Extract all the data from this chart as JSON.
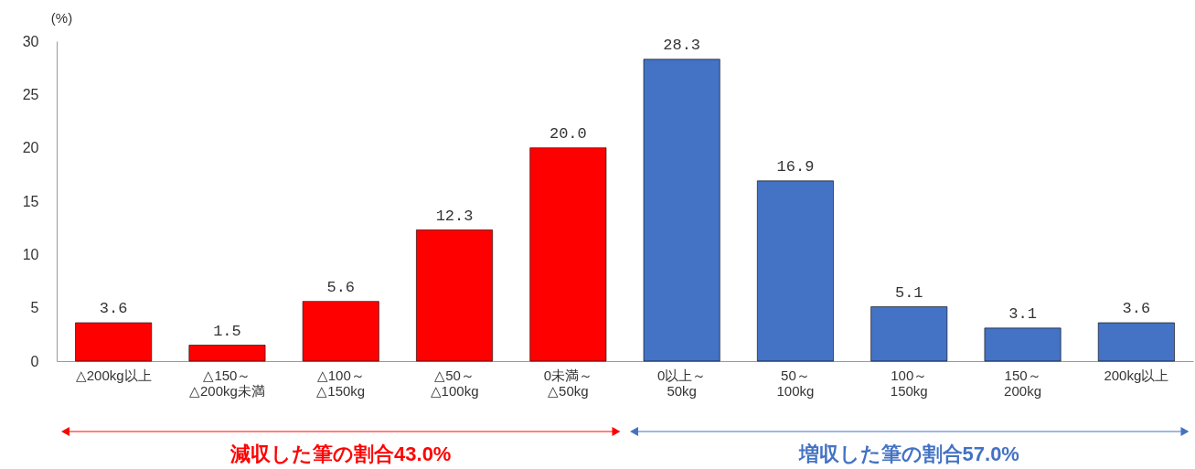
{
  "chart_data": {
    "type": "bar",
    "categories": [
      "△200kg以上",
      "△150～\n△200kg未満",
      "△100～\n△150kg",
      "△50～\n△100kg",
      "0未満～\n△50kg",
      "0以上～\n50kg",
      "50～\n100kg",
      "100～\n150kg",
      "150～\n200kg",
      "200kg以上"
    ],
    "values": [
      3.6,
      1.5,
      5.6,
      12.3,
      20.0,
      28.3,
      16.9,
      5.1,
      3.1,
      3.6
    ],
    "colors": [
      "#ff0000",
      "#ff0000",
      "#ff0000",
      "#ff0000",
      "#ff0000",
      "#4472c4",
      "#4472c4",
      "#4472c4",
      "#4472c4",
      "#4472c4"
    ],
    "ylabel": "(%)",
    "ylim": [
      0,
      30
    ],
    "yticks": [
      0,
      5,
      10,
      15,
      20,
      25,
      30
    ],
    "grid": false,
    "value_labels": [
      "3.6",
      "1.5",
      "5.6",
      "12.3",
      "20.0",
      "28.3",
      "16.9",
      "5.1",
      "3.1",
      "3.6"
    ],
    "annotations": [
      "減収した筆の割合43.0%",
      "増収した筆の割合57.0%"
    ]
  }
}
